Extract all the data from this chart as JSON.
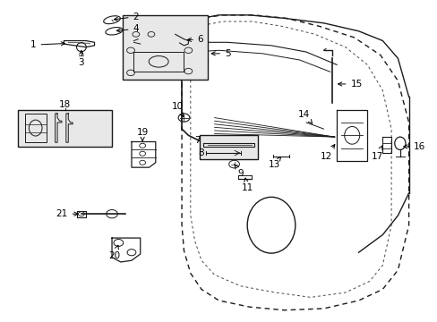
{
  "background_color": "#ffffff",
  "line_color": "#1a1a1a",
  "fig_width": 4.89,
  "fig_height": 3.6,
  "dpi": 100,
  "door_outer": {
    "x": [
      0.42,
      0.435,
      0.46,
      0.5,
      0.58,
      0.68,
      0.78,
      0.86,
      0.915,
      0.935,
      0.935,
      0.915,
      0.88,
      0.82,
      0.75,
      0.68,
      0.6,
      0.52,
      0.455,
      0.42
    ],
    "y": [
      0.92,
      0.95,
      0.965,
      0.97,
      0.97,
      0.965,
      0.955,
      0.94,
      0.92,
      0.88,
      0.5,
      0.38,
      0.26,
      0.17,
      0.12,
      0.09,
      0.075,
      0.075,
      0.09,
      0.92
    ]
  },
  "door_inner": {
    "x": [
      0.44,
      0.46,
      0.5,
      0.57,
      0.66,
      0.75,
      0.82,
      0.875,
      0.895,
      0.895,
      0.875,
      0.84,
      0.79,
      0.73,
      0.67,
      0.6,
      0.53,
      0.47,
      0.44
    ],
    "y": [
      0.88,
      0.905,
      0.92,
      0.925,
      0.92,
      0.91,
      0.9,
      0.885,
      0.86,
      0.52,
      0.4,
      0.29,
      0.21,
      0.155,
      0.12,
      0.105,
      0.105,
      0.12,
      0.88
    ]
  }
}
